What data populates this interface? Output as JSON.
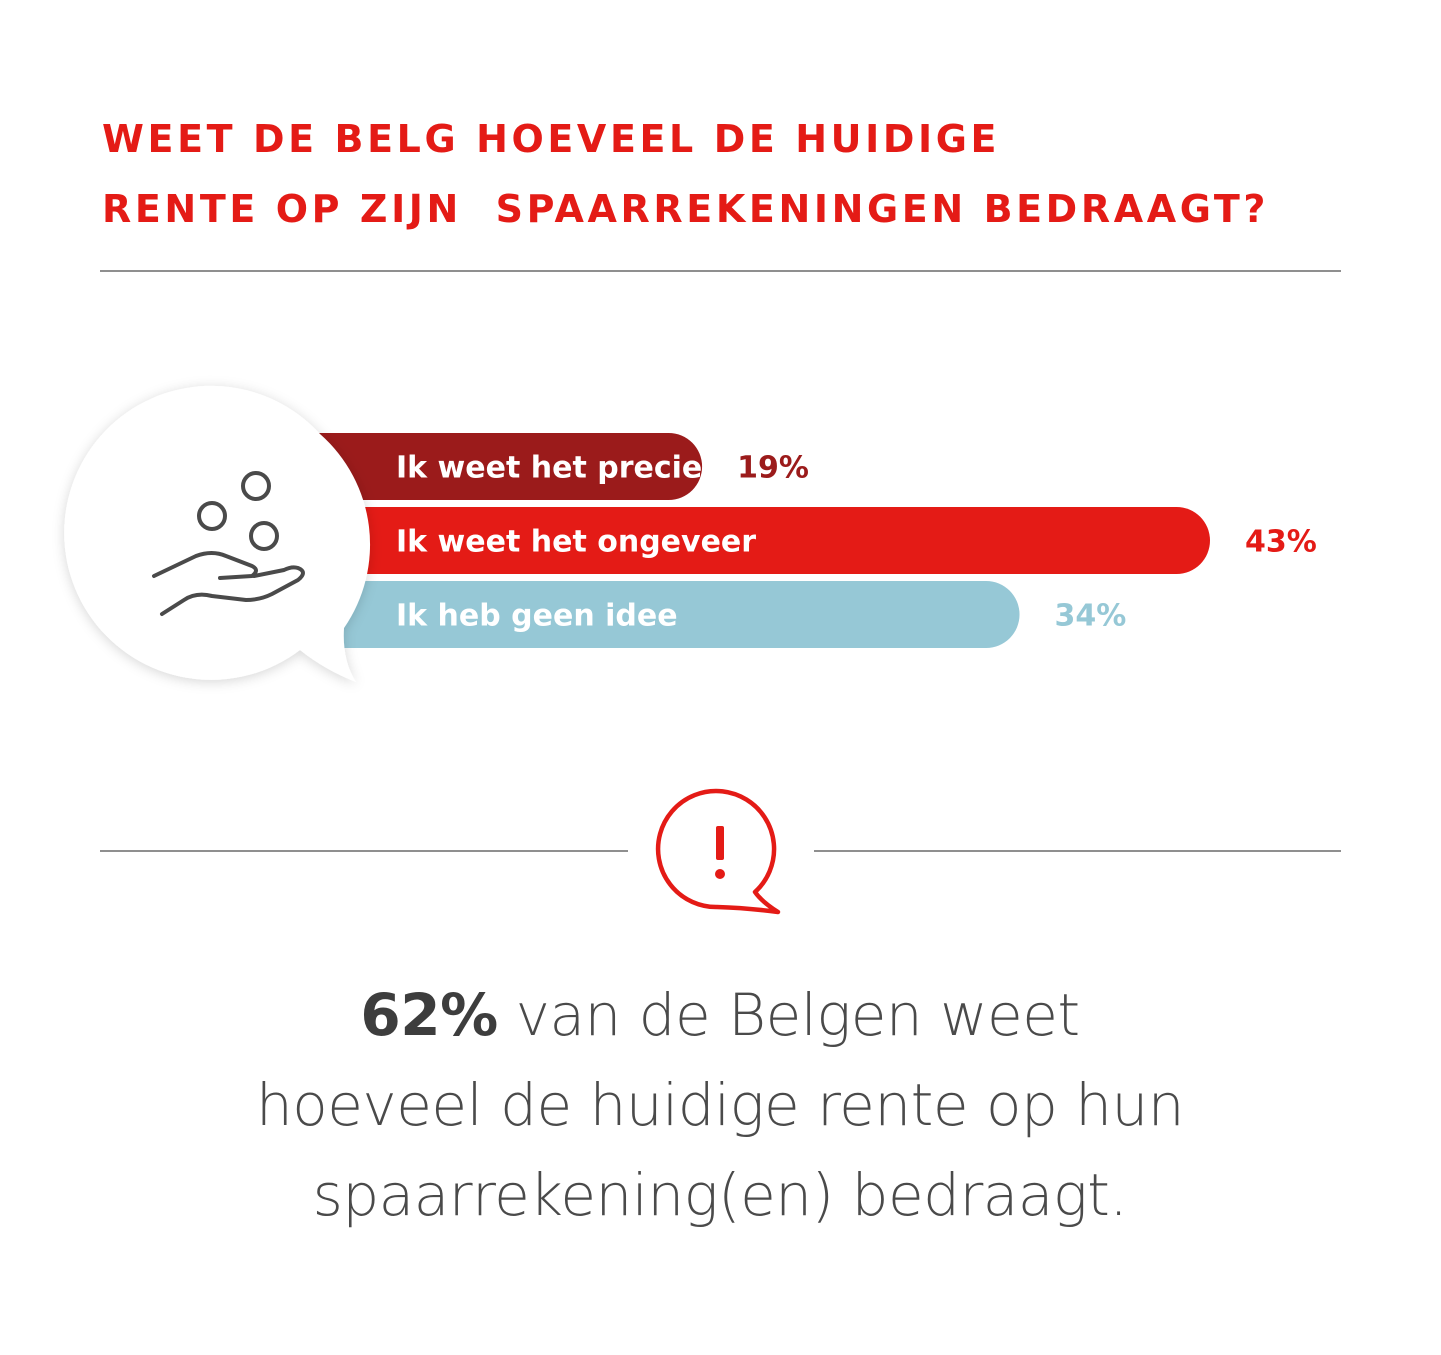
{
  "title": {
    "line1": "WEET DE BELG HOEVEEL DE HUIDIGE",
    "line2": "RENTE OP ZIJN  SPAARREKENINGEN BEDRAAGT?"
  },
  "colors": {
    "title": "#e41b16",
    "rule": "#8f8f8f",
    "text": "#4a4a4a"
  },
  "icons": {
    "chart_icon": "hand-coins-icon",
    "alert_icon": "exclamation-speech-bubble-icon"
  },
  "chart_data": {
    "type": "bar",
    "orientation": "horizontal",
    "categories": [
      "Ik weet het precies",
      "Ik weet het ongeveer",
      "Ik heb geen idee"
    ],
    "values": [
      19,
      43,
      34
    ],
    "value_labels": [
      "19%",
      "43%",
      "34%"
    ],
    "colors": [
      "#9b1b1b",
      "#e41b16",
      "#96c8d6"
    ],
    "title": "",
    "xlabel": "",
    "ylabel": "",
    "xlim": [
      0,
      43
    ],
    "grid": false,
    "legend": "none"
  },
  "conclusion": {
    "highlight": "62%",
    "line1_rest": " van de Belgen weet",
    "line2": "hoeveel de huidige rente op hun",
    "line3": "spaarrekening(en) bedraagt."
  }
}
